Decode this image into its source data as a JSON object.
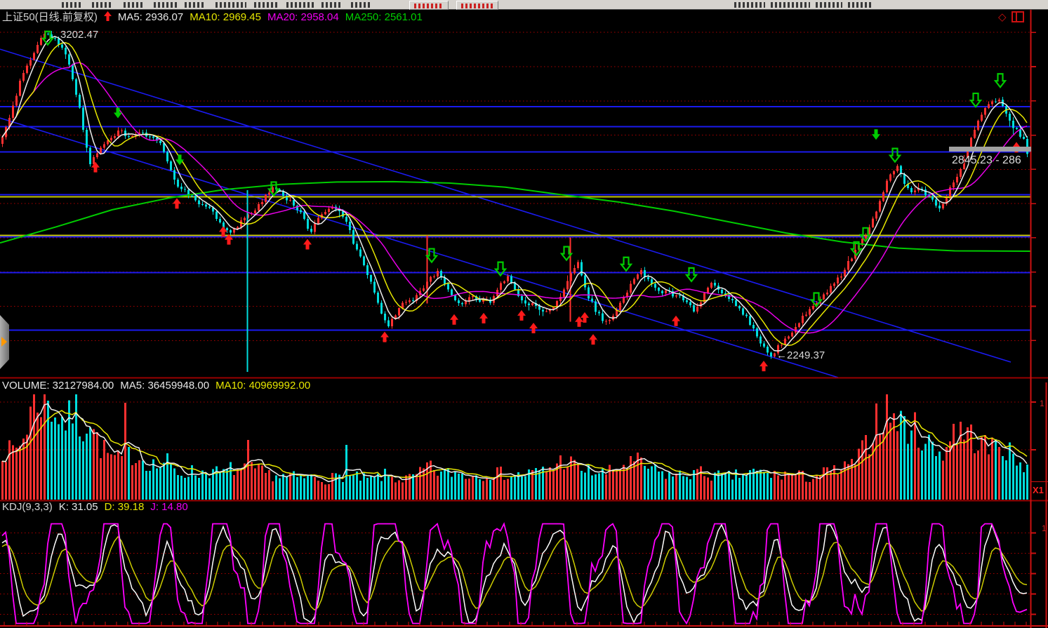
{
  "header": {
    "title": "上证50(日线.前复权)",
    "ma5": "MA5: 2936.07",
    "ma10": "MA10: 2969.45",
    "ma20": "MA20: 2958.04",
    "ma250": "MA250: 2561.01"
  },
  "volume_header": {
    "volume": "VOLUME: 32127984.00",
    "ma5": "MA5: 36459948.00",
    "ma10": "MA10: 40969992.00"
  },
  "kdj_header": {
    "name": "KDJ(9,3,3)",
    "k": "K: 31.05",
    "d": "D: 39.18",
    "j": "J: 14.80"
  },
  "labels": {
    "peak": "3202.47",
    "low": "←2249.37",
    "price_tag": "2845.23 - 286",
    "x1": "X1",
    "axis_clip_volume": "1",
    "axis_clip_kdj": "1"
  },
  "colors": {
    "up": "#ff3030",
    "down": "#00dddd",
    "ma5": "#ececec",
    "ma10": "#e6e600",
    "ma20": "#e600e6",
    "ma250": "#00cc00",
    "grid_dot": "#aa0000",
    "level_blue": "#1a1aee",
    "level_yellow": "#c6c600",
    "trend_blue": "#1a1aee",
    "axis_red": "#cc1111",
    "divider_red": "#990000",
    "marker_red": "#ff1a1a",
    "marker_green": "#00cc00",
    "kdj_k": "#ffffff",
    "kdj_d": "#cccc00",
    "kdj_j": "#ff00ff"
  },
  "chart_data": [
    {
      "type": "candlestick",
      "symbol": "上证50",
      "period": "日线",
      "adjust": "前复权",
      "ylim": [
        2192,
        3268
      ],
      "key_values": {
        "high": 3202.47,
        "low": 2249.37,
        "last_close": 2845.23,
        "ma5": 2936.07,
        "ma10": 2969.45,
        "ma20": 2958.04,
        "ma250": 2561.01
      },
      "gridline_prices": [
        3200,
        3100,
        3000,
        2900,
        2800,
        2700,
        2600,
        2500,
        2400,
        2300
      ],
      "levels_blue": [
        2983,
        2925,
        2851,
        2726,
        2603,
        2498,
        2330
      ],
      "levels_yellow": [
        2720,
        2607
      ],
      "trendlines": [
        [
          [
            0,
            3151
          ],
          [
            1440,
            2237
          ]
        ],
        [
          [
            0,
            2950
          ],
          [
            1194,
            2192
          ]
        ]
      ],
      "price_anchors": [
        [
          0,
          2874
        ],
        [
          15,
          2966
        ],
        [
          30,
          3069
        ],
        [
          50,
          3151
        ],
        [
          65,
          3202
        ],
        [
          80,
          3178
        ],
        [
          95,
          3126
        ],
        [
          112,
          2987
        ],
        [
          128,
          2812
        ],
        [
          140,
          2853
        ],
        [
          155,
          2892
        ],
        [
          170,
          2913
        ],
        [
          185,
          2892
        ],
        [
          200,
          2905
        ],
        [
          215,
          2892
        ],
        [
          228,
          2880
        ],
        [
          240,
          2812
        ],
        [
          252,
          2757
        ],
        [
          265,
          2736
        ],
        [
          278,
          2705
        ],
        [
          290,
          2695
        ],
        [
          302,
          2675
        ],
        [
          315,
          2634
        ],
        [
          327,
          2613
        ],
        [
          340,
          2642
        ],
        [
          352,
          2662
        ],
        [
          365,
          2683
        ],
        [
          378,
          2724
        ],
        [
          390,
          2753
        ],
        [
          402,
          2724
        ],
        [
          415,
          2705
        ],
        [
          428,
          2675
        ],
        [
          440,
          2613
        ],
        [
          452,
          2654
        ],
        [
          465,
          2687
        ],
        [
          478,
          2685
        ],
        [
          490,
          2664
        ],
        [
          502,
          2592
        ],
        [
          515,
          2531
        ],
        [
          528,
          2469
        ],
        [
          540,
          2397
        ],
        [
          552,
          2342
        ],
        [
          565,
          2387
        ],
        [
          578,
          2418
        ],
        [
          590,
          2420
        ],
        [
          602,
          2449
        ],
        [
          614,
          2482
        ],
        [
          624,
          2500
        ],
        [
          636,
          2453
        ],
        [
          648,
          2420
        ],
        [
          660,
          2408
        ],
        [
          672,
          2428
        ],
        [
          685,
          2418
        ],
        [
          698,
          2412
        ],
        [
          710,
          2459
        ],
        [
          722,
          2488
        ],
        [
          735,
          2441
        ],
        [
          748,
          2412
        ],
        [
          760,
          2404
        ],
        [
          772,
          2379
        ],
        [
          785,
          2389
        ],
        [
          798,
          2430
        ],
        [
          812,
          2490
        ],
        [
          822,
          2535
        ],
        [
          835,
          2439
        ],
        [
          848,
          2389
        ],
        [
          860,
          2358
        ],
        [
          872,
          2368
        ],
        [
          885,
          2418
        ],
        [
          898,
          2461
        ],
        [
          912,
          2502
        ],
        [
          925,
          2471
        ],
        [
          938,
          2441
        ],
        [
          950,
          2441
        ],
        [
          962,
          2430
        ],
        [
          975,
          2420
        ],
        [
          988,
          2389
        ],
        [
          1000,
          2420
        ],
        [
          1012,
          2471
        ],
        [
          1025,
          2441
        ],
        [
          1038,
          2420
        ],
        [
          1050,
          2399
        ],
        [
          1062,
          2368
        ],
        [
          1075,
          2327
        ],
        [
          1088,
          2276
        ],
        [
          1096,
          2250
        ],
        [
          1110,
          2286
        ],
        [
          1122,
          2307
        ],
        [
          1135,
          2348
        ],
        [
          1148,
          2379
        ],
        [
          1160,
          2409
        ],
        [
          1172,
          2430
        ],
        [
          1185,
          2461
        ],
        [
          1198,
          2492
        ],
        [
          1210,
          2533
        ],
        [
          1222,
          2574
        ],
        [
          1235,
          2615
        ],
        [
          1248,
          2677
        ],
        [
          1258,
          2738
        ],
        [
          1268,
          2790
        ],
        [
          1278,
          2810
        ],
        [
          1288,
          2759
        ],
        [
          1298,
          2728
        ],
        [
          1308,
          2749
        ],
        [
          1318,
          2728
        ],
        [
          1328,
          2707
        ],
        [
          1340,
          2687
        ],
        [
          1352,
          2738
        ],
        [
          1362,
          2779
        ],
        [
          1372,
          2820
        ],
        [
          1382,
          2882
        ],
        [
          1392,
          2943
        ],
        [
          1402,
          2974
        ],
        [
          1412,
          2995
        ],
        [
          1422,
          3009
        ],
        [
          1432,
          2964
        ],
        [
          1440,
          2933
        ],
        [
          1448,
          2913
        ],
        [
          1456,
          2892
        ],
        [
          1464,
          2858
        ]
      ],
      "ma250_anchors": [
        [
          0,
          2585
        ],
        [
          80,
          2632
        ],
        [
          160,
          2682
        ],
        [
          240,
          2716
        ],
        [
          320,
          2741
        ],
        [
          400,
          2756
        ],
        [
          480,
          2763
        ],
        [
          560,
          2764
        ],
        [
          640,
          2760
        ],
        [
          720,
          2748
        ],
        [
          800,
          2726
        ],
        [
          880,
          2705
        ],
        [
          960,
          2678
        ],
        [
          1040,
          2646
        ],
        [
          1120,
          2614
        ],
        [
          1200,
          2588
        ],
        [
          1280,
          2570
        ],
        [
          1360,
          2562
        ],
        [
          1468,
          2561
        ]
      ],
      "special_wicks": [
        [
          352,
          2739,
          2208,
          "down"
        ],
        [
          608,
          2607,
          2408,
          "up"
        ],
        [
          812,
          2601,
          2355,
          "up"
        ]
      ],
      "markers": {
        "red_up": [
          [
            136,
            2826
          ],
          [
            252,
            2720
          ],
          [
            318,
            2638
          ],
          [
            326,
            2615
          ],
          [
            438,
            2601
          ],
          [
            548,
            2330
          ],
          [
            647,
            2381
          ],
          [
            689,
            2385
          ],
          [
            743,
            2393
          ],
          [
            760,
            2356
          ],
          [
            825,
            2375
          ],
          [
            833,
            2387
          ],
          [
            845,
            2323
          ],
          [
            963,
            2377
          ],
          [
            1088,
            2245
          ],
          [
            1448,
            2884
          ]
        ],
        "green_down_solid": [
          [
            168,
            2976
          ],
          [
            256,
            2839
          ],
          [
            1248,
            2913
          ]
        ],
        "green_down_hollow": [
          [
            68,
            3205
          ],
          [
            390,
            2765
          ],
          [
            615,
            2570
          ],
          [
            713,
            2531
          ],
          [
            807,
            2576
          ],
          [
            892,
            2545
          ],
          [
            985,
            2514
          ],
          [
            1163,
            2441
          ],
          [
            1220,
            2590
          ],
          [
            1233,
            2631
          ],
          [
            1275,
            2863
          ],
          [
            1390,
            3024
          ],
          [
            1425,
            3081
          ]
        ]
      }
    },
    {
      "type": "bar",
      "name": "VOLUME",
      "last_volume": 32127984,
      "ma5": 36459948,
      "ma10": 40969992,
      "rel_to_shares": 670000,
      "gridlines_rel": [
        139,
        71
      ],
      "anchors_rel": [
        [
          0,
          75
        ],
        [
          12,
          65
        ],
        [
          24,
          72
        ],
        [
          34,
          88
        ],
        [
          44,
          130
        ],
        [
          54,
          140
        ],
        [
          64,
          142
        ],
        [
          76,
          125
        ],
        [
          86,
          115
        ],
        [
          96,
          105
        ],
        [
          106,
          130
        ],
        [
          116,
          95
        ],
        [
          126,
          120
        ],
        [
          136,
          85
        ],
        [
          146,
          70
        ],
        [
          156,
          60
        ],
        [
          168,
          54
        ],
        [
          186,
          64
        ],
        [
          196,
          60
        ],
        [
          206,
          55
        ],
        [
          216,
          50
        ],
        [
          226,
          45
        ],
        [
          236,
          55
        ],
        [
          246,
          40
        ],
        [
          258,
          36
        ],
        [
          270,
          40
        ],
        [
          282,
          36
        ],
        [
          294,
          40
        ],
        [
          306,
          38
        ],
        [
          318,
          36
        ],
        [
          330,
          44
        ],
        [
          342,
          40
        ],
        [
          358,
          44
        ],
        [
          366,
          40
        ],
        [
          378,
          36
        ],
        [
          390,
          34
        ],
        [
          402,
          32
        ],
        [
          414,
          32
        ],
        [
          426,
          30
        ],
        [
          438,
          32
        ],
        [
          450,
          30
        ],
        [
          462,
          28
        ],
        [
          474,
          30
        ],
        [
          486,
          33
        ],
        [
          500,
          32
        ],
        [
          512,
          30
        ],
        [
          524,
          28
        ],
        [
          536,
          30
        ],
        [
          548,
          34
        ],
        [
          560,
          30
        ],
        [
          572,
          28
        ],
        [
          584,
          30
        ],
        [
          596,
          34
        ],
        [
          608,
          46
        ],
        [
          620,
          40
        ],
        [
          632,
          36
        ],
        [
          644,
          38
        ],
        [
          656,
          36
        ],
        [
          668,
          34
        ],
        [
          680,
          34
        ],
        [
          692,
          36
        ],
        [
          704,
          38
        ],
        [
          716,
          36
        ],
        [
          728,
          34
        ],
        [
          740,
          34
        ],
        [
          752,
          36
        ],
        [
          764,
          38
        ],
        [
          776,
          40
        ],
        [
          788,
          46
        ],
        [
          800,
          55
        ],
        [
          812,
          52
        ],
        [
          824,
          42
        ],
        [
          836,
          40
        ],
        [
          848,
          38
        ],
        [
          860,
          36
        ],
        [
          872,
          40
        ],
        [
          884,
          46
        ],
        [
          896,
          50
        ],
        [
          908,
          52
        ],
        [
          920,
          46
        ],
        [
          932,
          40
        ],
        [
          944,
          36
        ],
        [
          956,
          34
        ],
        [
          968,
          34
        ],
        [
          980,
          36
        ],
        [
          992,
          38
        ],
        [
          1004,
          36
        ],
        [
          1016,
          34
        ],
        [
          1028,
          32
        ],
        [
          1040,
          32
        ],
        [
          1052,
          34
        ],
        [
          1064,
          36
        ],
        [
          1076,
          38
        ],
        [
          1088,
          36
        ],
        [
          1100,
          34
        ],
        [
          1112,
          34
        ],
        [
          1124,
          36
        ],
        [
          1136,
          34
        ],
        [
          1150,
          30
        ],
        [
          1165,
          35
        ],
        [
          1180,
          38
        ],
        [
          1195,
          40
        ],
        [
          1210,
          46
        ],
        [
          1225,
          60
        ],
        [
          1240,
          90
        ],
        [
          1256,
          120
        ],
        [
          1266,
          125
        ],
        [
          1276,
          110
        ],
        [
          1286,
          105
        ],
        [
          1296,
          100
        ],
        [
          1306,
          95
        ],
        [
          1316,
          85
        ],
        [
          1326,
          75
        ],
        [
          1336,
          66
        ],
        [
          1346,
          70
        ],
        [
          1356,
          90
        ],
        [
          1370,
          95
        ],
        [
          1380,
          90
        ],
        [
          1390,
          85
        ],
        [
          1400,
          76
        ],
        [
          1410,
          70
        ],
        [
          1418,
          78
        ],
        [
          1425,
          82
        ],
        [
          1435,
          66
        ],
        [
          1445,
          56
        ],
        [
          1455,
          50
        ],
        [
          1465,
          48
        ]
      ],
      "spikes_rel": [
        [
          176,
          138,
          "up"
        ],
        [
          354,
          85,
          "up"
        ],
        [
          493,
          78,
          "down"
        ],
        [
          1248,
          137,
          "up"
        ],
        [
          1360,
          108,
          "up"
        ]
      ]
    },
    {
      "type": "line",
      "name": "KDJ(9,3,3)",
      "params": [
        9,
        3,
        3
      ],
      "last_values": {
        "k": 31.05,
        "d": 39.18,
        "j": 14.8
      },
      "range": [
        0,
        100
      ],
      "gridlines": [
        90,
        70,
        50,
        30,
        10
      ],
      "series": [
        {
          "name": "K"
        },
        {
          "name": "D"
        },
        {
          "name": "J"
        }
      ]
    }
  ]
}
